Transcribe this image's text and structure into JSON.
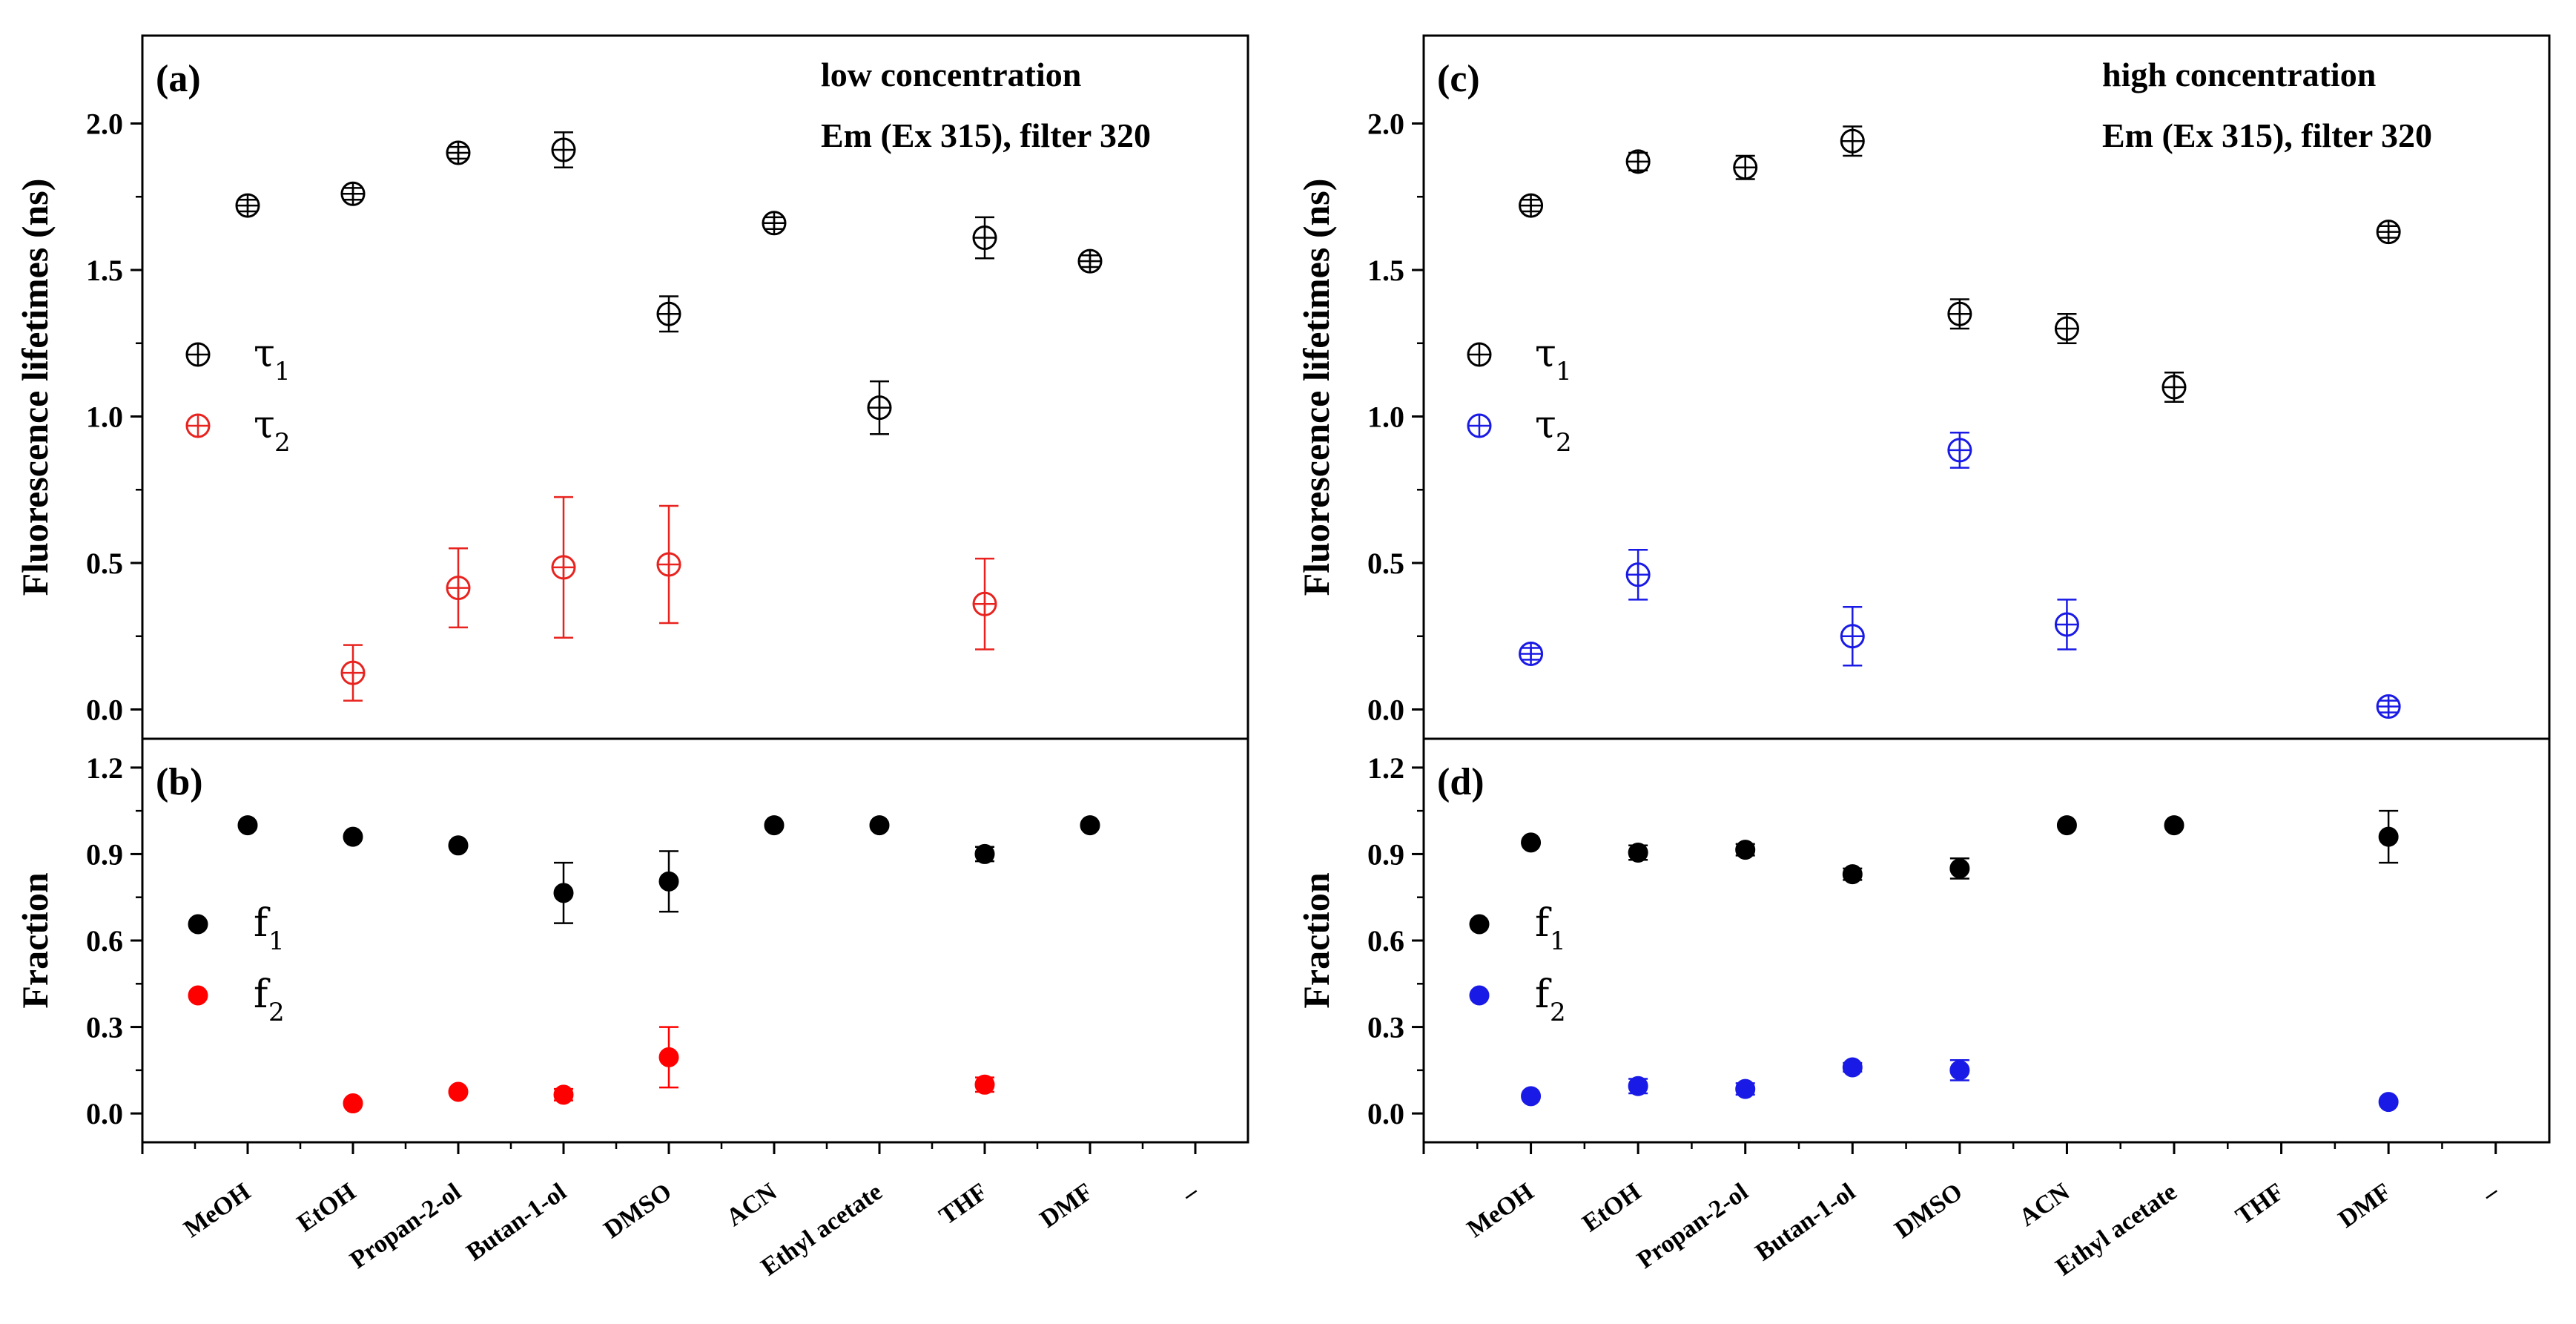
{
  "chart_data": [
    {
      "panel": "left",
      "type": "scatter",
      "categories": [
        "MeOH",
        "EtOH",
        "Propan-2-ol",
        "Butan-1-ol",
        "DMSO",
        "ACN",
        "Ethyl acetate",
        "THF",
        "DMF",
        "–"
      ],
      "top": {
        "label": "(a)",
        "annotation": [
          "low concentration",
          "Em (Ex 315), filter 320"
        ],
        "ylabel": "Fluorescence lifetimes (ns)",
        "ylim": [
          -0.1,
          2.3
        ],
        "yticks": [
          "0.0",
          "0.5",
          "1.0",
          "1.5",
          "2.0"
        ],
        "series": [
          {
            "name": "τ",
            "sub": "1",
            "color": "#000000",
            "values": [
              1.72,
              1.76,
              1.9,
              1.91,
              1.35,
              1.66,
              1.03,
              1.61,
              1.53,
              null
            ],
            "errors": [
              0.02,
              0.02,
              0.02,
              0.06,
              0.06,
              0.02,
              0.09,
              0.07,
              0.02,
              null
            ]
          },
          {
            "name": "τ",
            "sub": "2",
            "color": "#e8231f",
            "values": [
              null,
              0.125,
              0.415,
              0.485,
              0.495,
              null,
              null,
              0.36,
              null,
              null
            ],
            "errors": [
              null,
              0.095,
              0.135,
              0.24,
              0.2,
              null,
              null,
              0.155,
              null,
              null
            ]
          }
        ]
      },
      "bottom": {
        "label": "(b)",
        "ylabel": "Fraction",
        "ylim": [
          -0.1,
          1.3
        ],
        "yticks": [
          "0.0",
          "0.3",
          "0.6",
          "0.9",
          "1.2"
        ],
        "series": [
          {
            "name": "f",
            "sub": "1",
            "color": "#000000",
            "values": [
              1.0,
              0.96,
              0.93,
              0.765,
              0.805,
              1.0,
              1.0,
              0.9,
              1.0,
              null
            ],
            "errors": [
              0,
              0,
              0,
              0.105,
              0.105,
              0,
              0,
              0.025,
              0,
              null
            ]
          },
          {
            "name": "f",
            "sub": "2",
            "color": "#ff0000",
            "values": [
              null,
              0.035,
              0.075,
              0.065,
              0.195,
              null,
              null,
              0.1,
              null,
              null
            ],
            "errors": [
              null,
              0,
              0,
              0.02,
              0.105,
              null,
              null,
              0.025,
              null,
              null
            ]
          }
        ]
      }
    },
    {
      "panel": "right",
      "type": "scatter",
      "categories": [
        "MeOH",
        "EtOH",
        "Propan-2-ol",
        "Butan-1-ol",
        "DMSO",
        "ACN",
        "Ethyl acetate",
        "THF",
        "DMF",
        "–"
      ],
      "top": {
        "label": "(c)",
        "annotation": [
          "high concentration",
          "Em (Ex 315), filter 320"
        ],
        "ylabel": "Fluorescence lifetimes (ns)",
        "ylim": [
          -0.1,
          2.3
        ],
        "yticks": [
          "0.0",
          "0.5",
          "1.0",
          "1.5",
          "2.0"
        ],
        "series": [
          {
            "name": "τ",
            "sub": "1",
            "color": "#000000",
            "values": [
              1.72,
              1.87,
              1.85,
              1.94,
              1.35,
              1.3,
              1.1,
              null,
              1.63,
              null
            ],
            "errors": [
              0.02,
              0.03,
              0.04,
              0.05,
              0.05,
              0.05,
              0.05,
              null,
              0.02,
              null
            ]
          },
          {
            "name": "τ",
            "sub": "2",
            "color": "#1a1ae6",
            "values": [
              0.19,
              0.46,
              null,
              0.25,
              0.885,
              0.29,
              null,
              null,
              0.01,
              null
            ],
            "errors": [
              0.02,
              0.085,
              null,
              0.1,
              0.06,
              0.085,
              null,
              null,
              0.02,
              null
            ]
          }
        ]
      },
      "bottom": {
        "label": "(d)",
        "ylabel": "Fraction",
        "ylim": [
          -0.1,
          1.3
        ],
        "yticks": [
          "0.0",
          "0.3",
          "0.6",
          "0.9",
          "1.2"
        ],
        "series": [
          {
            "name": "f",
            "sub": "1",
            "color": "#000000",
            "values": [
              0.94,
              0.905,
              0.915,
              0.83,
              0.85,
              1.0,
              1.0,
              null,
              0.96,
              null
            ],
            "errors": [
              0,
              0.025,
              0.02,
              0.02,
              0.035,
              0,
              0,
              null,
              0.09,
              null
            ]
          },
          {
            "name": "f",
            "sub": "2",
            "color": "#1a1ae6",
            "values": [
              0.06,
              0.095,
              0.085,
              0.16,
              0.15,
              null,
              null,
              null,
              0.04,
              null
            ],
            "errors": [
              0,
              0.025,
              0.02,
              0.015,
              0.035,
              null,
              null,
              null,
              0,
              null
            ]
          }
        ]
      }
    }
  ]
}
